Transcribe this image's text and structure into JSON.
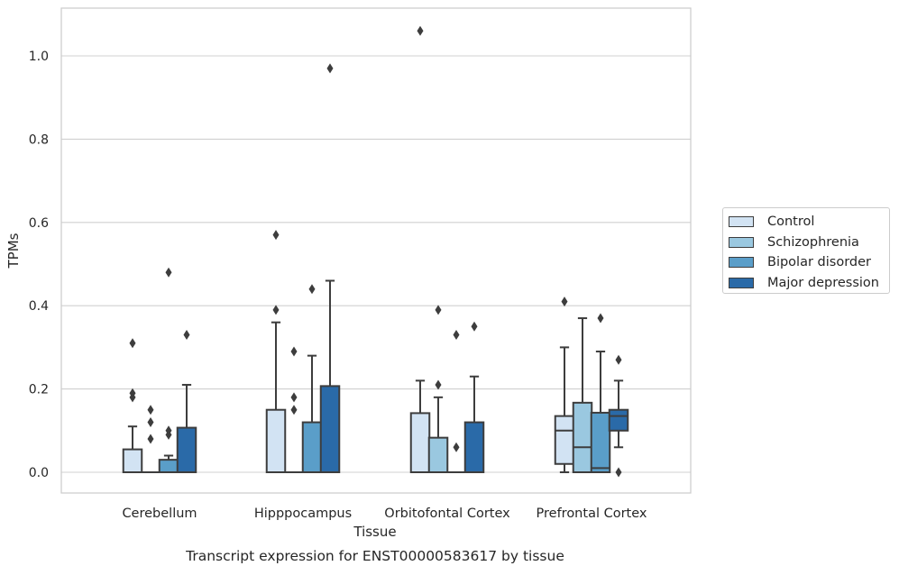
{
  "chart_data": {
    "type": "box",
    "xlabel": "Tissue",
    "ylabel": "TPMs",
    "caption": "Transcript expression for ENST00000583617 by tissue",
    "ylim": [
      -0.05,
      1.12
    ],
    "yticks": [
      0.0,
      0.2,
      0.4,
      0.6,
      0.8,
      1.0
    ],
    "ytick_labels": [
      "0.0",
      "0.2",
      "0.4",
      "0.6",
      "0.8",
      "1.0"
    ],
    "grid": "horizontal",
    "legend_position": "right-middle",
    "categories": [
      "Cerebellum",
      "Hipppocampus",
      "Orbitofontal Cortex",
      "Prefrontal Cortex"
    ],
    "series": [
      {
        "name": "Control",
        "color": "#d2e3f3",
        "boxes": [
          {
            "q1": 0.0,
            "median": 0.0,
            "q3": 0.055,
            "whisker_low": 0.0,
            "whisker_high": 0.11,
            "outliers": [
              0.18,
              0.19,
              0.31
            ]
          },
          {
            "q1": 0.0,
            "median": 0.0,
            "q3": 0.15,
            "whisker_low": 0.0,
            "whisker_high": 0.36,
            "outliers": [
              0.39,
              0.57
            ]
          },
          {
            "q1": 0.0,
            "median": 0.0,
            "q3": 0.142,
            "whisker_low": 0.0,
            "whisker_high": 0.22,
            "outliers": [
              1.06
            ]
          },
          {
            "q1": 0.02,
            "median": 0.1,
            "q3": 0.135,
            "whisker_low": 0.0,
            "whisker_high": 0.3,
            "outliers": [
              0.41
            ]
          }
        ]
      },
      {
        "name": "Schizophrenia",
        "color": "#9ac8e0",
        "boxes": [
          {
            "q1": 0.0,
            "median": 0.0,
            "q3": 0.0,
            "whisker_low": 0.0,
            "whisker_high": 0.0,
            "outliers": [
              0.08,
              0.12,
              0.15
            ]
          },
          {
            "q1": 0.0,
            "median": 0.0,
            "q3": 0.0,
            "whisker_low": 0.0,
            "whisker_high": 0.0,
            "outliers": [
              0.15,
              0.18,
              0.29
            ]
          },
          {
            "q1": 0.0,
            "median": 0.0,
            "q3": 0.083,
            "whisker_low": 0.0,
            "whisker_high": 0.18,
            "outliers": [
              0.21,
              0.39
            ]
          },
          {
            "q1": 0.0,
            "median": 0.06,
            "q3": 0.167,
            "whisker_low": 0.0,
            "whisker_high": 0.37,
            "outliers": []
          }
        ]
      },
      {
        "name": "Bipolar disorder",
        "color": "#5a9ec9",
        "boxes": [
          {
            "q1": 0.0,
            "median": 0.0,
            "q3": 0.03,
            "whisker_low": 0.0,
            "whisker_high": 0.04,
            "outliers": [
              0.09,
              0.1,
              0.48
            ]
          },
          {
            "q1": 0.0,
            "median": 0.0,
            "q3": 0.12,
            "whisker_low": 0.0,
            "whisker_high": 0.28,
            "outliers": [
              0.44
            ]
          },
          {
            "q1": 0.0,
            "median": 0.0,
            "q3": 0.0,
            "whisker_low": 0.0,
            "whisker_high": 0.0,
            "outliers": [
              0.06,
              0.33
            ]
          },
          {
            "q1": 0.0,
            "median": 0.01,
            "q3": 0.143,
            "whisker_low": 0.0,
            "whisker_high": 0.29,
            "outliers": [
              0.37
            ]
          }
        ]
      },
      {
        "name": "Major depression",
        "color": "#2a6aa8",
        "boxes": [
          {
            "q1": 0.0,
            "median": 0.0,
            "q3": 0.107,
            "whisker_low": 0.0,
            "whisker_high": 0.21,
            "outliers": [
              0.33
            ]
          },
          {
            "q1": 0.0,
            "median": 0.0,
            "q3": 0.207,
            "whisker_low": 0.0,
            "whisker_high": 0.46,
            "outliers": [
              0.97
            ]
          },
          {
            "q1": 0.0,
            "median": 0.0,
            "q3": 0.12,
            "whisker_low": 0.0,
            "whisker_high": 0.23,
            "outliers": [
              0.35
            ]
          },
          {
            "q1": 0.1,
            "median": 0.135,
            "q3": 0.15,
            "whisker_low": 0.06,
            "whisker_high": 0.22,
            "outliers": [
              0.0,
              0.27
            ]
          }
        ]
      }
    ]
  }
}
